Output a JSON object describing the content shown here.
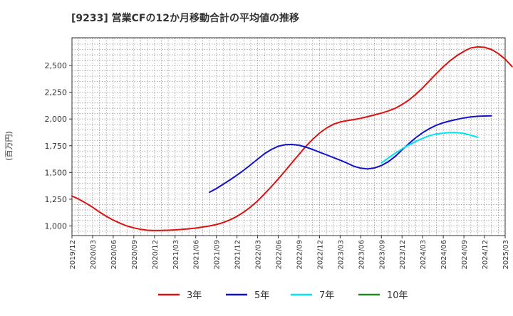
{
  "chart_data": {
    "type": "line",
    "title": "[9233]  営業CFの12か月移動合計の平均値の推移",
    "ylabel": "(百万円)",
    "xlabel": "",
    "ylim": [
      910,
      2760
    ],
    "yticks": [
      1000,
      1250,
      1500,
      1750,
      2000,
      2250,
      2500
    ],
    "ytick_labels": [
      "1,000",
      "1,250",
      "1,500",
      "1,750",
      "2,000",
      "2,250",
      "2,500"
    ],
    "xlim": [
      "2019/12",
      "2025/03"
    ],
    "xtick_labels": [
      "2019/12",
      "2020/03",
      "2020/06",
      "2020/09",
      "2020/12",
      "2021/03",
      "2021/06",
      "2021/09",
      "2021/12",
      "2022/03",
      "2022/06",
      "2022/09",
      "2022/12",
      "2023/03",
      "2023/06",
      "2023/09",
      "2023/12",
      "2024/03",
      "2024/06",
      "2024/09",
      "2024/12",
      "2025/03"
    ],
    "grid": true,
    "legend_position": "bottom",
    "series": [
      {
        "name": "3年",
        "color": "#dd1111",
        "points": [
          [
            "2019/12",
            1280
          ],
          [
            "2020/01",
            1250
          ],
          [
            "2020/02",
            1215
          ],
          [
            "2020/03",
            1175
          ],
          [
            "2020/04",
            1130
          ],
          [
            "2020/05",
            1090
          ],
          [
            "2020/06",
            1055
          ],
          [
            "2020/07",
            1025
          ],
          [
            "2020/08",
            1000
          ],
          [
            "2020/09",
            982
          ],
          [
            "2020/10",
            968
          ],
          [
            "2020/11",
            960
          ],
          [
            "2020/12",
            957
          ],
          [
            "2021/01",
            958
          ],
          [
            "2021/02",
            960
          ],
          [
            "2021/03",
            963
          ],
          [
            "2021/04",
            968
          ],
          [
            "2021/05",
            973
          ],
          [
            "2021/06",
            980
          ],
          [
            "2021/07",
            990
          ],
          [
            "2021/08",
            1000
          ],
          [
            "2021/09",
            1013
          ],
          [
            "2021/10",
            1032
          ],
          [
            "2021/11",
            1058
          ],
          [
            "2021/12",
            1090
          ],
          [
            "2022/01",
            1130
          ],
          [
            "2022/02",
            1178
          ],
          [
            "2022/03",
            1235
          ],
          [
            "2022/04",
            1300
          ],
          [
            "2022/05",
            1368
          ],
          [
            "2022/06",
            1440
          ],
          [
            "2022/07",
            1515
          ],
          [
            "2022/08",
            1592
          ],
          [
            "2022/09",
            1668
          ],
          [
            "2022/10",
            1743
          ],
          [
            "2022/11",
            1810
          ],
          [
            "2022/12",
            1868
          ],
          [
            "2023/01",
            1915
          ],
          [
            "2023/02",
            1950
          ],
          [
            "2023/03",
            1972
          ],
          [
            "2023/04",
            1985
          ],
          [
            "2023/05",
            1995
          ],
          [
            "2023/06",
            2007
          ],
          [
            "2023/07",
            2022
          ],
          [
            "2023/08",
            2038
          ],
          [
            "2023/09",
            2055
          ],
          [
            "2023/10",
            2075
          ],
          [
            "2023/11",
            2100
          ],
          [
            "2023/12",
            2135
          ],
          [
            "2024/01",
            2178
          ],
          [
            "2024/02",
            2230
          ],
          [
            "2024/03",
            2290
          ],
          [
            "2024/04",
            2358
          ],
          [
            "2024/05",
            2425
          ],
          [
            "2024/06",
            2488
          ],
          [
            "2024/07",
            2545
          ],
          [
            "2024/08",
            2593
          ],
          [
            "2024/09",
            2633
          ],
          [
            "2024/10",
            2664
          ],
          [
            "2024/11",
            2675
          ],
          [
            "2024/12",
            2670
          ],
          [
            "2025/01",
            2650
          ],
          [
            "2025/02",
            2612
          ],
          [
            "2025/03",
            2560
          ],
          [
            "2025/04",
            2490
          ]
        ]
      },
      {
        "name": "5年",
        "color": "#1111cc",
        "points": [
          [
            "2021/08",
            1315
          ],
          [
            "2021/09",
            1350
          ],
          [
            "2021/10",
            1390
          ],
          [
            "2021/11",
            1432
          ],
          [
            "2021/12",
            1475
          ],
          [
            "2022/01",
            1522
          ],
          [
            "2022/02",
            1572
          ],
          [
            "2022/03",
            1625
          ],
          [
            "2022/04",
            1675
          ],
          [
            "2022/05",
            1715
          ],
          [
            "2022/06",
            1745
          ],
          [
            "2022/07",
            1760
          ],
          [
            "2022/08",
            1762
          ],
          [
            "2022/09",
            1755
          ],
          [
            "2022/10",
            1738
          ],
          [
            "2022/11",
            1715
          ],
          [
            "2022/12",
            1690
          ],
          [
            "2023/01",
            1665
          ],
          [
            "2023/02",
            1640
          ],
          [
            "2023/03",
            1615
          ],
          [
            "2023/04",
            1588
          ],
          [
            "2023/05",
            1558
          ],
          [
            "2023/06",
            1540
          ],
          [
            "2023/07",
            1533
          ],
          [
            "2023/08",
            1542
          ],
          [
            "2023/09",
            1565
          ],
          [
            "2023/10",
            1600
          ],
          [
            "2023/11",
            1650
          ],
          [
            "2023/12",
            1710
          ],
          [
            "2024/01",
            1770
          ],
          [
            "2024/02",
            1825
          ],
          [
            "2024/03",
            1872
          ],
          [
            "2024/04",
            1910
          ],
          [
            "2024/05",
            1942
          ],
          [
            "2024/06",
            1965
          ],
          [
            "2024/07",
            1982
          ],
          [
            "2024/08",
            1997
          ],
          [
            "2024/09",
            2010
          ],
          [
            "2024/10",
            2020
          ],
          [
            "2024/11",
            2025
          ],
          [
            "2024/12",
            2028
          ],
          [
            "2025/01",
            2030
          ]
        ]
      },
      {
        "name": "7年",
        "color": "#00e5ee",
        "points": [
          [
            "2023/09",
            1590
          ],
          [
            "2023/10",
            1635
          ],
          [
            "2023/11",
            1680
          ],
          [
            "2023/12",
            1720
          ],
          [
            "2024/01",
            1757
          ],
          [
            "2024/02",
            1790
          ],
          [
            "2024/03",
            1820
          ],
          [
            "2024/04",
            1845
          ],
          [
            "2024/05",
            1860
          ],
          [
            "2024/06",
            1868
          ],
          [
            "2024/07",
            1873
          ],
          [
            "2024/08",
            1873
          ],
          [
            "2024/09",
            1865
          ],
          [
            "2024/10",
            1848
          ],
          [
            "2024/11",
            1830
          ]
        ]
      },
      {
        "name": "10年",
        "color": "#228822",
        "points": []
      }
    ]
  }
}
